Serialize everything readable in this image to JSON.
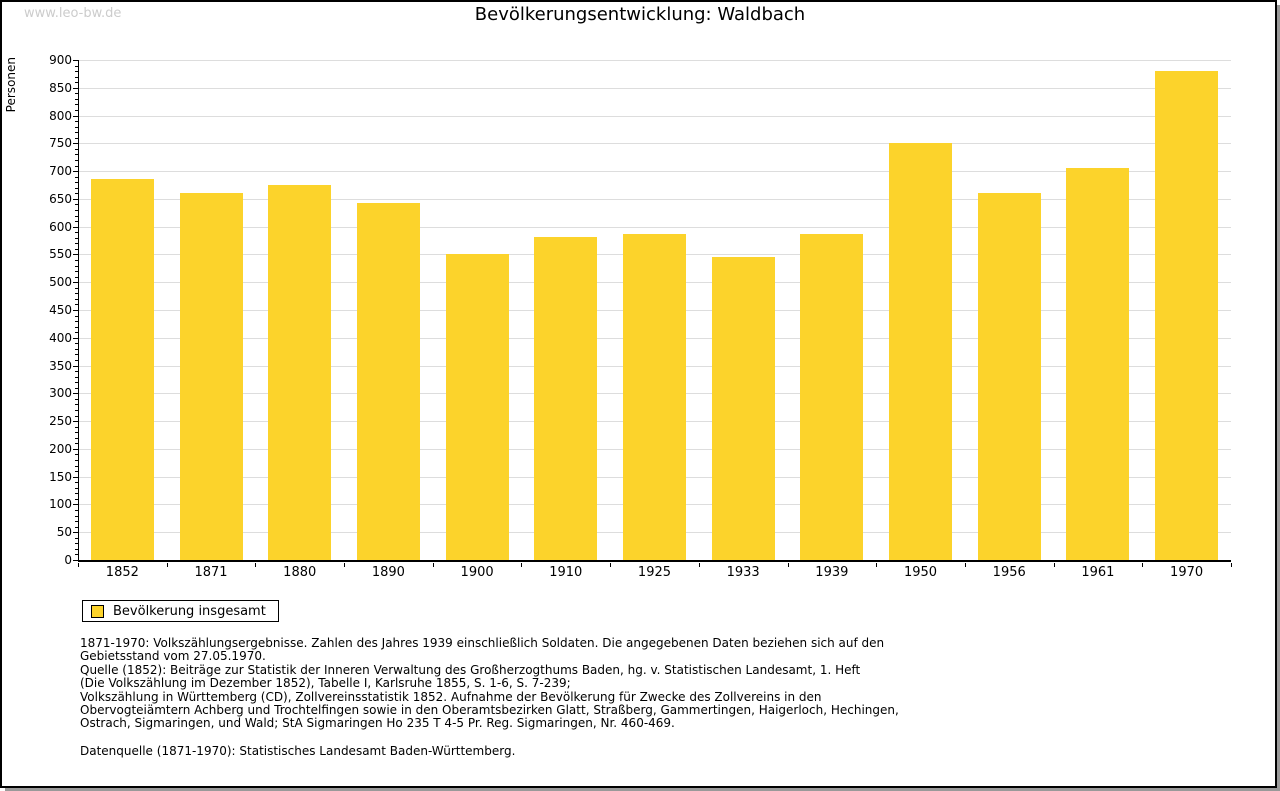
{
  "watermark": "www.leo-bw.de",
  "chart_data": {
    "type": "bar",
    "title": "Bevölkerungsentwicklung: Waldbach",
    "xlabel": "",
    "ylabel": "Personen",
    "categories": [
      "1852",
      "1871",
      "1880",
      "1890",
      "1900",
      "1910",
      "1925",
      "1933",
      "1939",
      "1950",
      "1956",
      "1961",
      "1970"
    ],
    "series": [
      {
        "name": "Bevölkerung insgesamt",
        "values": [
          686,
          660,
          675,
          642,
          551,
          582,
          587,
          546,
          586,
          750,
          660,
          705,
          881
        ]
      }
    ],
    "ylim": [
      0,
      900
    ],
    "ytick_step": 50,
    "minor_tick_step": 10,
    "grid": true,
    "legend_position": "bottom-left",
    "bar_color": "#FCD32B",
    "grid_color": "#DDDDDD",
    "axis_color": "#000000"
  },
  "legend": {
    "label": "Bevölkerung insgesamt"
  },
  "footnotes": {
    "lines": [
      "1871-1970: Volkszählungsergebnisse. Zahlen des Jahres 1939 einschließlich Soldaten. Die angegebenen Daten beziehen sich auf den",
      "Gebietsstand vom 27.05.1970.",
      "Quelle (1852): Beiträge zur Statistik der Inneren Verwaltung des Großherzogthums Baden, hg. v. Statistischen Landesamt, 1. Heft",
      "(Die Volkszählung im Dezember 1852), Tabelle I, Karlsruhe 1855, S. 1-6, S. 7-239;",
      "Volkszählung in Württemberg (CD), Zollvereinsstatistik 1852. Aufnahme der Bevölkerung für Zwecke des Zollvereins in den",
      "Obervogteiämtern Achberg und Trochtelfingen sowie in den Oberamtsbezirken Glatt, Straßberg, Gammertingen, Haigerloch, Hechingen,",
      "Ostrach, Sigmaringen, und Wald; StA Sigmaringen Ho 235 T 4-5 Pr. Reg. Sigmaringen, Nr. 460-469."
    ],
    "datasource": "Datenquelle (1871-1970): Statistisches Landesamt Baden-Württemberg."
  }
}
